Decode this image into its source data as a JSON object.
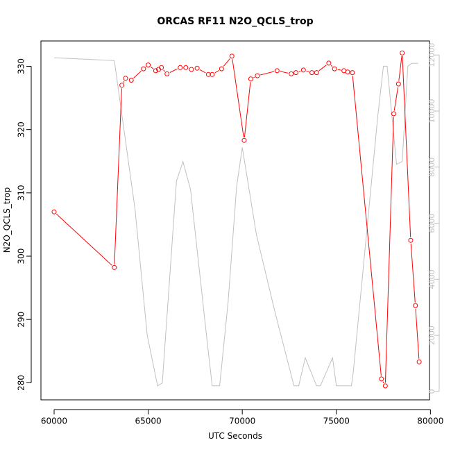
{
  "chart_data": {
    "type": "line",
    "title": "ORCAS RF11 N2O_QCLS_trop",
    "xlabel": "UTC Seconds",
    "ylabel": "N2O_QCLS_trop",
    "xlim": [
      59300,
      79950
    ],
    "ylim": [
      277.3,
      334.0
    ],
    "y2lim": [
      -300,
      12500
    ],
    "x_ticks": [
      60000,
      65000,
      70000,
      75000,
      80000
    ],
    "y_ticks": [
      280,
      290,
      300,
      310,
      320,
      330
    ],
    "y2_ticks": [
      0,
      2000,
      4000,
      6000,
      8000,
      10000,
      12000
    ],
    "grid": false,
    "colors": {
      "primary": "#ff0000",
      "secondary": "#c0c0c0",
      "axis": "#000000",
      "axis2": "#c0c0c0"
    },
    "series": [
      {
        "axis": "left",
        "marker": "open-circle",
        "points": [
          [
            60000,
            307.0
          ],
          [
            63200,
            298.2
          ],
          [
            63600,
            327.0
          ],
          [
            63800,
            328.1
          ],
          [
            64100,
            327.8
          ],
          [
            64750,
            329.6
          ],
          [
            65000,
            330.2
          ],
          [
            65400,
            329.3
          ],
          [
            65550,
            329.5
          ],
          [
            65700,
            329.8
          ],
          [
            66000,
            328.8
          ],
          [
            66700,
            329.8
          ],
          [
            67000,
            329.8
          ],
          [
            67300,
            329.5
          ],
          [
            67600,
            329.7
          ],
          [
            68200,
            328.7
          ],
          [
            68400,
            328.7
          ],
          [
            68900,
            329.6
          ],
          [
            69450,
            331.6
          ],
          [
            70100,
            318.3
          ],
          [
            70450,
            328.0
          ],
          [
            70800,
            328.5
          ],
          [
            71850,
            329.3
          ],
          [
            72600,
            328.8
          ],
          [
            72850,
            329.0
          ],
          [
            73250,
            329.4
          ],
          [
            73700,
            329.0
          ],
          [
            73950,
            329.0
          ],
          [
            74600,
            330.5
          ],
          [
            74900,
            329.6
          ],
          [
            75400,
            329.3
          ],
          [
            75600,
            329.1
          ],
          [
            75850,
            329.0
          ],
          [
            77400,
            280.6
          ],
          [
            77600,
            279.5
          ],
          [
            78050,
            322.5
          ],
          [
            78300,
            327.2
          ],
          [
            78500,
            332.1
          ],
          [
            78950,
            302.5
          ],
          [
            79200,
            292.2
          ],
          [
            79400,
            283.3
          ]
        ]
      },
      {
        "axis": "right",
        "marker": "none",
        "points": [
          [
            60000,
            11900
          ],
          [
            63200,
            11800
          ],
          [
            64300,
            6500
          ],
          [
            64950,
            2000
          ],
          [
            65500,
            200
          ],
          [
            65750,
            300
          ],
          [
            66500,
            7500
          ],
          [
            66850,
            8200
          ],
          [
            67250,
            7200
          ],
          [
            68100,
            2000
          ],
          [
            68400,
            200
          ],
          [
            68800,
            200
          ],
          [
            69250,
            3200
          ],
          [
            69700,
            7300
          ],
          [
            70000,
            8700
          ],
          [
            70750,
            5600
          ],
          [
            71750,
            2800
          ],
          [
            72750,
            200
          ],
          [
            73000,
            200
          ],
          [
            73350,
            1200
          ],
          [
            73950,
            200
          ],
          [
            74150,
            200
          ],
          [
            74800,
            1200
          ],
          [
            75000,
            200
          ],
          [
            75800,
            200
          ],
          [
            75900,
            700
          ],
          [
            77200,
            9800
          ],
          [
            77500,
            11600
          ],
          [
            77700,
            11600
          ],
          [
            78200,
            8100
          ],
          [
            78500,
            8200
          ],
          [
            78800,
            11600
          ],
          [
            79000,
            11700
          ],
          [
            79350,
            11700
          ]
        ]
      }
    ]
  }
}
